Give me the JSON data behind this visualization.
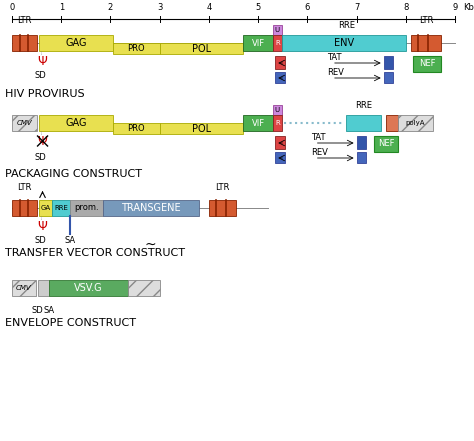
{
  "bg_color": "#ffffff",
  "title_fontsize": 8,
  "label_fontsize": 7,
  "small_fontsize": 6,
  "colors": {
    "LTR": "#d45a30",
    "GAG": "#e8e050",
    "PRO": "#e8e050",
    "POL": "#e8e050",
    "VIF": "#4caf50",
    "ENV": "#50ccd0",
    "U": "#cc88dd",
    "NEF": "#4caf50",
    "TAT_box": "#dd4444",
    "REV_box": "#4466bb",
    "TAT2_box": "#4466bb",
    "REV2_box": "#3355aa",
    "prom": "#aaaaaa",
    "TRANSGENE": "#7799bb",
    "GA": "#e8e050",
    "RRE_box": "#50ccd0",
    "VSV": "#5aaa60",
    "dotted_line": "#88bbcc",
    "NEF_border": "#228822",
    "hatch_bg": "#dddddd"
  },
  "ruler_ticks": [
    0,
    1,
    2,
    3,
    4,
    5,
    6,
    7,
    8,
    9
  ],
  "ruler_label": "Kbp"
}
